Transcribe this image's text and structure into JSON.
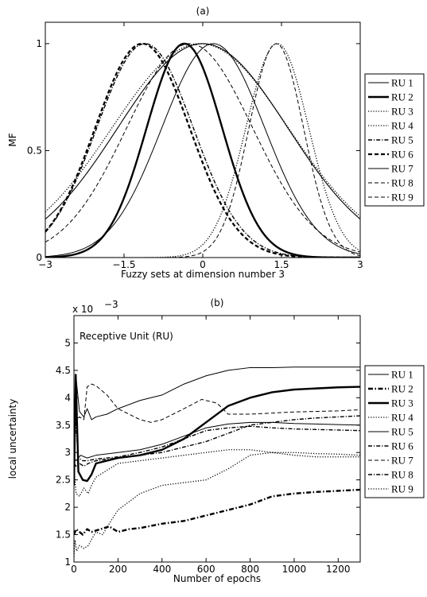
{
  "chart_data": [
    {
      "id": "a",
      "type": "line",
      "title": "(a)",
      "xlabel": "Fuzzy sets at dimension number 3",
      "ylabel": "MF",
      "xlim": [
        -3,
        3
      ],
      "ylim": [
        0,
        1.1
      ],
      "xticks": [
        -3,
        -1.5,
        0,
        1.5,
        3
      ],
      "xtick_labels": [
        "−3",
        "−1.5",
        "0",
        "1.5",
        "3"
      ],
      "yticks": [
        0,
        0.5,
        1
      ],
      "ytick_labels": [
        "0",
        "0.5",
        "1"
      ],
      "grid": false,
      "legend_position": "right",
      "curve_kind": "gaussian",
      "series": [
        {
          "name": "RU 1",
          "center": 0.0,
          "sigma": 1.62,
          "style": "thin-dotted-marker"
        },
        {
          "name": "RU 2",
          "center": -0.35,
          "sigma": 0.72,
          "style": "thick-solid"
        },
        {
          "name": "RU 3",
          "center": 1.42,
          "sigma": 0.6,
          "style": "dotted"
        },
        {
          "name": "RU 4",
          "center": -0.05,
          "sigma": 1.68,
          "style": "dotted"
        },
        {
          "name": "RU 5",
          "center": -1.1,
          "sigma": 0.92,
          "style": "dash-dot"
        },
        {
          "name": "RU 6",
          "center": -1.15,
          "sigma": 0.9,
          "style": "thick-dashed"
        },
        {
          "name": "RU 7",
          "center": 0.2,
          "sigma": 0.98,
          "style": "thin-solid"
        },
        {
          "name": "RU 8",
          "center": 1.4,
          "sigma": 0.52,
          "style": "thin-dashed"
        },
        {
          "name": "RU 9",
          "center": -0.25,
          "sigma": 1.2,
          "style": "thin-dashed"
        }
      ]
    },
    {
      "id": "b",
      "type": "line",
      "title": "(b)",
      "xlabel": "Number of epochs",
      "ylabel": "local uncertainty",
      "scale_label": "x 10",
      "scale_exponent": "−3",
      "annotation": "Receptive Unit (RU)",
      "xlim": [
        0,
        1300
      ],
      "ylim": [
        1,
        5.5
      ],
      "xticks": [
        0,
        200,
        400,
        600,
        800,
        1000,
        1200
      ],
      "yticks": [
        1,
        1.5,
        2,
        2.5,
        3,
        3.5,
        4,
        4.5,
        5
      ],
      "grid": false,
      "legend_position": "right",
      "series": [
        {
          "name": "RU 1",
          "style": "thin-solid",
          "x": [
            0,
            10,
            25,
            45,
            60,
            80,
            100,
            150,
            200,
            300,
            400,
            500,
            600,
            700,
            800,
            900,
            1000,
            1100,
            1200,
            1300
          ],
          "y": [
            3.0,
            4.35,
            3.75,
            3.65,
            3.8,
            3.6,
            3.65,
            3.7,
            3.8,
            3.95,
            4.05,
            4.25,
            4.4,
            4.5,
            4.55,
            4.55,
            4.56,
            4.56,
            4.56,
            4.56
          ]
        },
        {
          "name": "RU 2",
          "style": "thick-dash-dot",
          "x": [
            0,
            10,
            25,
            40,
            60,
            80,
            120,
            160,
            200,
            250,
            300,
            400,
            500,
            600,
            700,
            800,
            900,
            1000,
            1100,
            1200,
            1300
          ],
          "y": [
            1.5,
            1.6,
            1.55,
            1.5,
            1.6,
            1.55,
            1.6,
            1.65,
            1.55,
            1.6,
            1.62,
            1.7,
            1.75,
            1.85,
            1.95,
            2.05,
            2.2,
            2.25,
            2.28,
            2.3,
            2.32
          ]
        },
        {
          "name": "RU 3",
          "style": "thick-solid",
          "x": [
            0,
            8,
            20,
            40,
            60,
            80,
            100,
            200,
            300,
            400,
            500,
            600,
            700,
            800,
            900,
            1000,
            1100,
            1200,
            1300
          ],
          "y": [
            2.4,
            4.42,
            2.65,
            2.5,
            2.48,
            2.6,
            2.8,
            2.9,
            2.95,
            3.05,
            3.25,
            3.55,
            3.85,
            4.0,
            4.1,
            4.15,
            4.17,
            4.19,
            4.2
          ]
        },
        {
          "name": "RU 4",
          "style": "dotted",
          "x": [
            0,
            10,
            25,
            45,
            65,
            80,
            100,
            200,
            300,
            400,
            500,
            600,
            700,
            800,
            900,
            1000,
            1100,
            1200,
            1300
          ],
          "y": [
            2.7,
            2.25,
            2.2,
            2.35,
            2.25,
            2.4,
            2.55,
            2.8,
            2.85,
            2.9,
            2.95,
            3.0,
            3.05,
            3.05,
            3.0,
            2.95,
            2.92,
            2.92,
            2.92
          ]
        },
        {
          "name": "RU 5",
          "style": "thin-solid",
          "x": [
            0,
            10,
            30,
            60,
            100,
            200,
            300,
            400,
            500,
            600,
            700,
            800,
            900,
            1000,
            1100,
            1200,
            1300
          ],
          "y": [
            2.9,
            2.85,
            2.95,
            2.9,
            2.95,
            3.0,
            3.05,
            3.15,
            3.3,
            3.45,
            3.52,
            3.55,
            3.55,
            3.53,
            3.52,
            3.51,
            3.5
          ]
        },
        {
          "name": "RU 6",
          "style": "dash-dot",
          "x": [
            0,
            8,
            20,
            40,
            60,
            100,
            200,
            300,
            400,
            500,
            600,
            700,
            800,
            900,
            1000,
            1100,
            1200,
            1300
          ],
          "y": [
            4.0,
            3.55,
            2.9,
            2.85,
            2.85,
            2.88,
            2.92,
            3.0,
            3.1,
            3.25,
            3.4,
            3.45,
            3.48,
            3.45,
            3.43,
            3.42,
            3.41,
            3.4
          ]
        },
        {
          "name": "RU 7",
          "style": "thin-dashed",
          "x": [
            0,
            10,
            25,
            45,
            60,
            80,
            100,
            150,
            200,
            300,
            350,
            400,
            500,
            580,
            650,
            700,
            800,
            900,
            1000,
            1100,
            1200,
            1300
          ],
          "y": [
            3.9,
            3.6,
            3.65,
            3.6,
            4.2,
            4.25,
            4.22,
            4.05,
            3.8,
            3.6,
            3.55,
            3.6,
            3.8,
            3.97,
            3.9,
            3.7,
            3.7,
            3.72,
            3.74,
            3.75,
            3.76,
            3.78
          ]
        },
        {
          "name": "RU 8",
          "style": "dash-dot",
          "x": [
            0,
            10,
            25,
            45,
            65,
            100,
            200,
            300,
            400,
            500,
            600,
            700,
            800,
            900,
            1000,
            1100,
            1200,
            1300
          ],
          "y": [
            2.8,
            2.75,
            2.8,
            2.75,
            2.8,
            2.85,
            2.9,
            2.95,
            3.0,
            3.1,
            3.2,
            3.35,
            3.5,
            3.55,
            3.6,
            3.63,
            3.65,
            3.67
          ]
        },
        {
          "name": "RU 9",
          "style": "dotted",
          "x": [
            0,
            5,
            12,
            25,
            45,
            65,
            85,
            100,
            130,
            160,
            200,
            250,
            300,
            400,
            500,
            600,
            700,
            800,
            900,
            1000,
            1100,
            1200,
            1300
          ],
          "y": [
            1.1,
            1.4,
            1.2,
            1.3,
            1.25,
            1.3,
            1.45,
            1.55,
            1.5,
            1.7,
            1.95,
            2.1,
            2.25,
            2.4,
            2.45,
            2.5,
            2.7,
            2.95,
            3.0,
            3.0,
            2.98,
            2.97,
            2.95
          ]
        }
      ]
    }
  ]
}
